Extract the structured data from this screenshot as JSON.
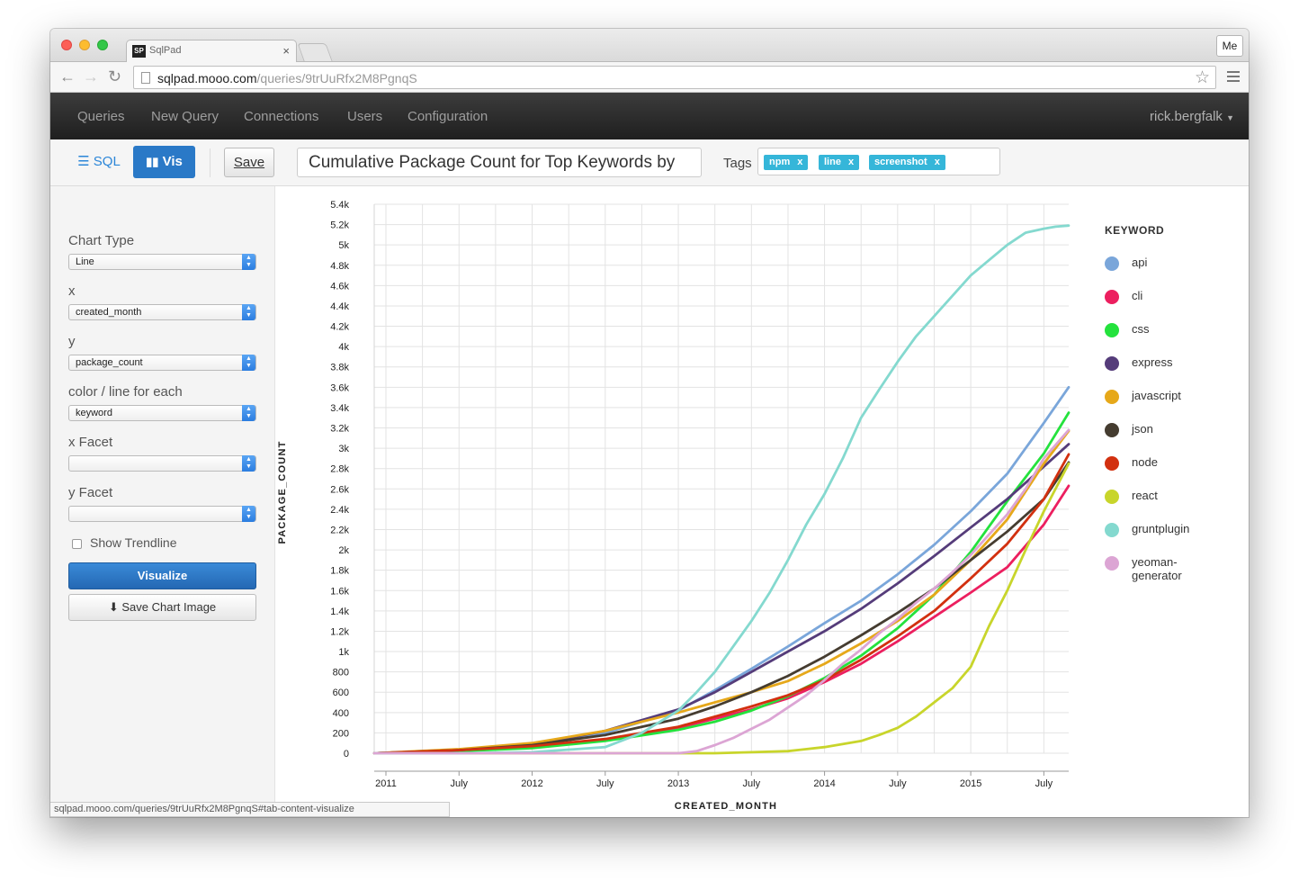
{
  "browser": {
    "tab_title": "SqlPad",
    "favicon_text": "SP",
    "tab_close": "×",
    "profile_button": "Me",
    "url_host": "sqlpad.mooo.com",
    "url_path": "/queries/9trUuRfx2M8PgnqS",
    "status_url": "sqlpad.mooo.com/queries/9trUuRfx2M8PgnqS#tab-content-visualize"
  },
  "nav": {
    "items": [
      "Queries",
      "New Query",
      "Connections",
      "Users",
      "Configuration"
    ],
    "user": "rick.bergfalk"
  },
  "toolbar": {
    "sql_label": "SQL",
    "vis_label": "Vis",
    "save_label": "Save",
    "query_title": "Cumulative Package Count for Top Keywords by",
    "tags_label": "Tags",
    "tags": [
      "npm",
      "line",
      "screenshot"
    ],
    "tag_remove": "x"
  },
  "sidebar": {
    "chart_type_label": "Chart Type",
    "chart_type_value": "Line",
    "x_label": "x",
    "x_value": "created_month",
    "y_label": "y",
    "y_value": "package_count",
    "color_label": "color / line for each",
    "color_value": "keyword",
    "x_facet_label": "x Facet",
    "x_facet_value": "",
    "y_facet_label": "y Facet",
    "y_facet_value": "",
    "trendline_label": "Show Trendline",
    "trendline_checked": false,
    "visualize_label": "Visualize",
    "save_image_label": "Save Chart Image"
  },
  "chart_data": {
    "type": "line",
    "xlabel": "CREATED_MONTH",
    "ylabel": "PACKAGE_COUNT",
    "legend_title": "KEYWORD",
    "legend_position": "right",
    "grid": true,
    "x_tick_labels": [
      "2011",
      "July",
      "2012",
      "July",
      "2013",
      "July",
      "2014",
      "July",
      "2015",
      "July"
    ],
    "x_ticks": [
      2011.0,
      2011.5,
      2012.0,
      2012.5,
      2013.0,
      2013.5,
      2014.0,
      2014.5,
      2015.0,
      2015.5
    ],
    "xlim": [
      2010.92,
      2015.67
    ],
    "ylim": [
      0,
      5400
    ],
    "y_ticks": [
      0,
      200,
      400,
      600,
      800,
      1000,
      1200,
      1400,
      1600,
      1800,
      2000,
      2200,
      2400,
      2600,
      2800,
      3000,
      3200,
      3400,
      3600,
      3800,
      4000,
      4200,
      4400,
      4600,
      4800,
      5000,
      5200,
      5400
    ],
    "y_tick_labels": [
      "0",
      "200",
      "400",
      "600",
      "800",
      "1k",
      "1.2k",
      "1.4k",
      "1.6k",
      "1.8k",
      "2k",
      "2.2k",
      "2.4k",
      "2.6k",
      "2.8k",
      "3k",
      "3.2k",
      "3.4k",
      "3.6k",
      "3.8k",
      "4k",
      "4.2k",
      "4.4k",
      "4.6k",
      "4.8k",
      "5k",
      "5.2k",
      "5.4k"
    ],
    "series": [
      {
        "name": "api",
        "color": "#7aa6da",
        "x": [
          2010.92,
          2011.5,
          2012.0,
          2012.5,
          2013.0,
          2013.25,
          2013.5,
          2013.75,
          2014.0,
          2014.25,
          2014.5,
          2014.75,
          2015.0,
          2015.25,
          2015.5,
          2015.67
        ],
        "y": [
          0,
          30,
          80,
          200,
          420,
          620,
          830,
          1050,
          1280,
          1500,
          1760,
          2050,
          2380,
          2750,
          3250,
          3600
        ]
      },
      {
        "name": "cli",
        "color": "#ec1f5f",
        "x": [
          2010.92,
          2011.5,
          2012.0,
          2012.5,
          2013.0,
          2013.25,
          2013.5,
          2013.75,
          2014.0,
          2014.25,
          2014.5,
          2014.75,
          2015.0,
          2015.25,
          2015.5,
          2015.67
        ],
        "y": [
          0,
          25,
          60,
          130,
          250,
          340,
          430,
          540,
          700,
          880,
          1100,
          1340,
          1580,
          1830,
          2250,
          2630
        ]
      },
      {
        "name": "css",
        "color": "#24e23d",
        "x": [
          2010.92,
          2011.5,
          2012.0,
          2012.5,
          2013.0,
          2013.25,
          2013.5,
          2013.75,
          2014.0,
          2014.25,
          2014.5,
          2014.75,
          2015.0,
          2015.25,
          2015.5,
          2015.67
        ],
        "y": [
          0,
          20,
          50,
          120,
          230,
          310,
          420,
          560,
          740,
          960,
          1230,
          1560,
          1980,
          2480,
          2950,
          3350
        ]
      },
      {
        "name": "express",
        "color": "#553c7a",
        "x": [
          2010.92,
          2011.5,
          2012.0,
          2012.5,
          2013.0,
          2013.25,
          2013.5,
          2013.75,
          2014.0,
          2014.25,
          2014.5,
          2014.75,
          2015.0,
          2015.25,
          2015.5,
          2015.67
        ],
        "y": [
          0,
          30,
          80,
          220,
          430,
          600,
          800,
          1000,
          1200,
          1420,
          1670,
          1940,
          2220,
          2500,
          2820,
          3040
        ]
      },
      {
        "name": "javascript",
        "color": "#e6a81a",
        "x": [
          2010.92,
          2011.5,
          2012.0,
          2012.5,
          2013.0,
          2013.25,
          2013.5,
          2013.75,
          2014.0,
          2014.25,
          2014.5,
          2014.75,
          2015.0,
          2015.25,
          2015.5,
          2015.67
        ],
        "y": [
          0,
          40,
          100,
          220,
          400,
          500,
          600,
          710,
          880,
          1080,
          1300,
          1560,
          1900,
          2300,
          2850,
          3170
        ]
      },
      {
        "name": "json",
        "color": "#453c30",
        "x": [
          2010.92,
          2011.5,
          2012.0,
          2012.5,
          2013.0,
          2013.25,
          2013.5,
          2013.75,
          2014.0,
          2014.25,
          2014.5,
          2014.75,
          2015.0,
          2015.25,
          2015.5,
          2015.67
        ],
        "y": [
          0,
          30,
          80,
          180,
          340,
          460,
          600,
          760,
          950,
          1160,
          1380,
          1620,
          1900,
          2180,
          2500,
          2860
        ]
      },
      {
        "name": "node",
        "color": "#d2300f",
        "x": [
          2010.92,
          2011.5,
          2012.0,
          2012.5,
          2013.0,
          2013.25,
          2013.5,
          2013.75,
          2014.0,
          2014.25,
          2014.5,
          2014.75,
          2015.0,
          2015.25,
          2015.5,
          2015.67
        ],
        "y": [
          0,
          30,
          70,
          140,
          260,
          360,
          460,
          570,
          720,
          920,
          1150,
          1400,
          1720,
          2060,
          2500,
          2940
        ]
      },
      {
        "name": "react",
        "color": "#c8d52b",
        "x": [
          2010.92,
          2011.5,
          2012.0,
          2012.5,
          2013.0,
          2013.25,
          2013.5,
          2013.75,
          2014.0,
          2014.25,
          2014.375,
          2014.5,
          2014.625,
          2014.75,
          2014.875,
          2015.0,
          2015.125,
          2015.25,
          2015.375,
          2015.5,
          2015.67
        ],
        "y": [
          0,
          0,
          0,
          0,
          0,
          0,
          10,
          20,
          60,
          120,
          180,
          250,
          360,
          500,
          640,
          850,
          1250,
          1600,
          2000,
          2380,
          2850
        ]
      },
      {
        "name": "gruntplugin",
        "color": "#84d9cf",
        "x": [
          2010.92,
          2011.5,
          2012.0,
          2012.5,
          2012.75,
          2013.0,
          2013.125,
          2013.25,
          2013.375,
          2013.5,
          2013.625,
          2013.75,
          2013.875,
          2014.0,
          2014.125,
          2014.25,
          2014.375,
          2014.5,
          2014.625,
          2014.75,
          2014.875,
          2015.0,
          2015.125,
          2015.25,
          2015.375,
          2015.5,
          2015.58,
          2015.67
        ],
        "y": [
          0,
          0,
          10,
          60,
          200,
          420,
          600,
          800,
          1050,
          1300,
          1580,
          1900,
          2250,
          2550,
          2900,
          3300,
          3580,
          3850,
          4100,
          4300,
          4500,
          4700,
          4850,
          5000,
          5120,
          5160,
          5180,
          5190
        ]
      },
      {
        "name": "yeoman-generator",
        "color": "#dca5d4",
        "x": [
          2010.92,
          2011.5,
          2012.0,
          2012.5,
          2013.0,
          2013.125,
          2013.25,
          2013.375,
          2013.5,
          2013.625,
          2013.75,
          2013.875,
          2014.0,
          2014.125,
          2014.25,
          2014.375,
          2014.5,
          2014.625,
          2014.75,
          2014.875,
          2015.0,
          2015.125,
          2015.25,
          2015.375,
          2015.5,
          2015.67
        ],
        "y": [
          0,
          0,
          0,
          0,
          0,
          20,
          80,
          150,
          240,
          330,
          450,
          570,
          720,
          880,
          1020,
          1180,
          1320,
          1480,
          1620,
          1780,
          1950,
          2150,
          2350,
          2600,
          2900,
          3180
        ]
      }
    ]
  }
}
